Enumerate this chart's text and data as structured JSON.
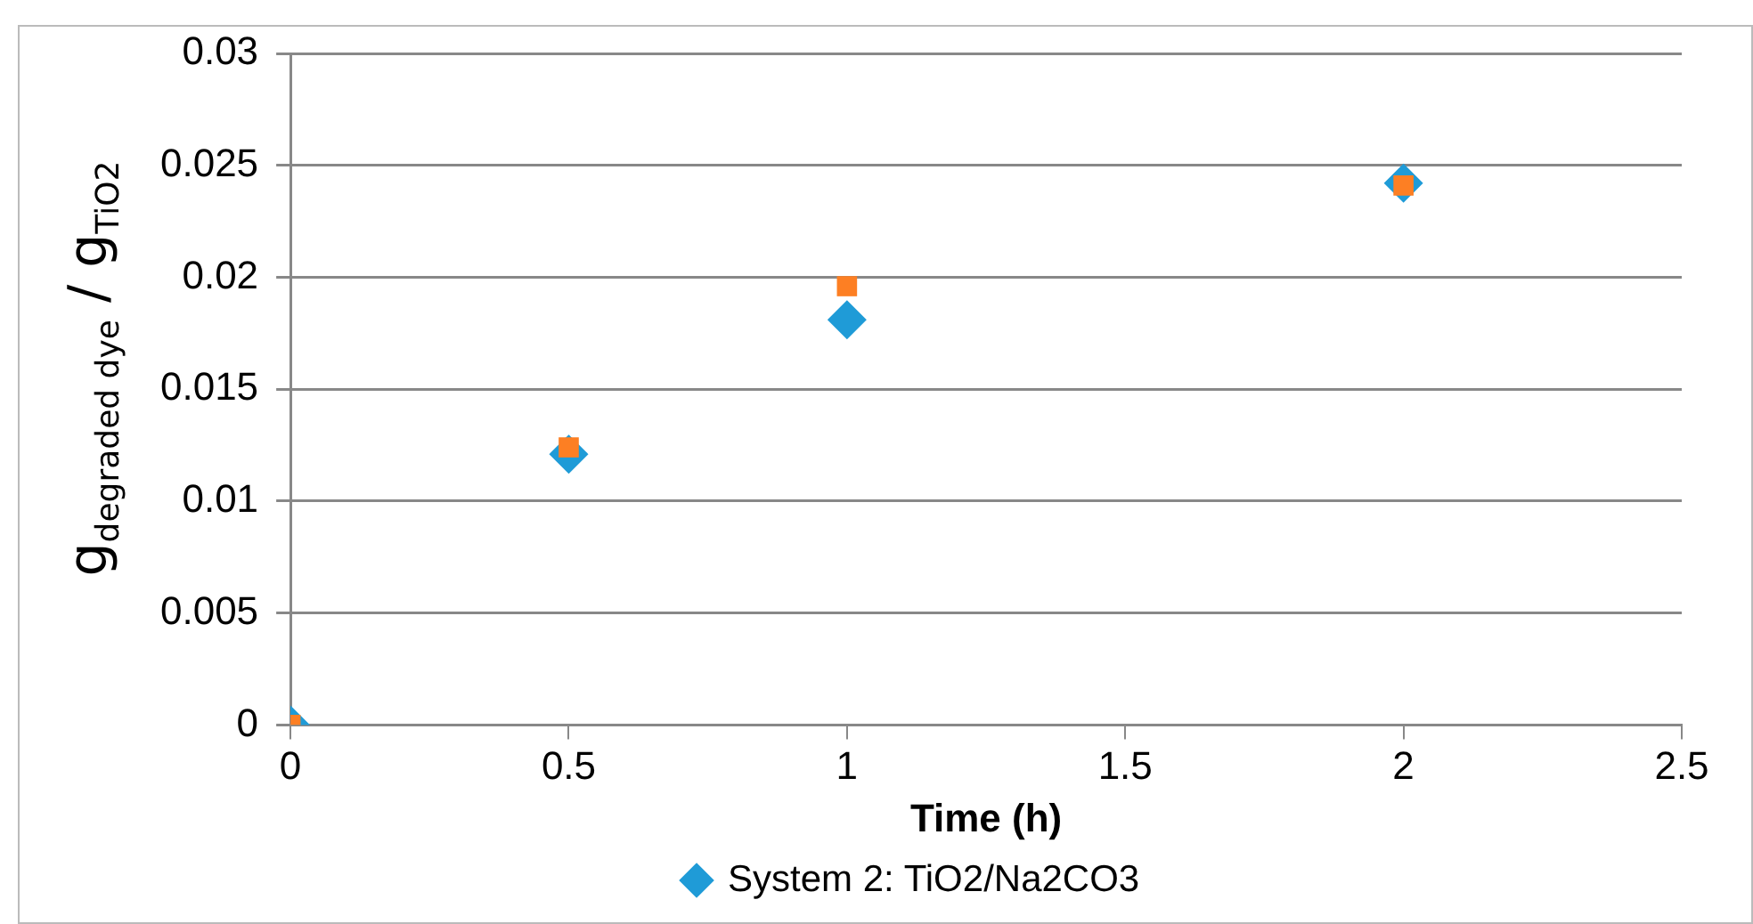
{
  "chart_data": {
    "type": "scatter",
    "xlabel": "Time (h)",
    "ylabel": "g$_{degraded dye}$ / g$_{TiO2}$",
    "x": [
      0,
      0.5,
      1,
      2
    ],
    "series": [
      {
        "name": "System 2: TiO2/Na2CO3",
        "color": "#1f9bd7",
        "marker": "diamond",
        "values": [
          0,
          0.0121,
          0.0181,
          0.0242
        ]
      },
      {
        "color": "#fd7f23",
        "marker": "square",
        "values": [
          0,
          0.0124,
          0.0196,
          0.0241
        ]
      }
    ],
    "xlim": [
      0,
      2.5
    ],
    "xticks": [
      0,
      0.5,
      1,
      1.5,
      2,
      2.5
    ],
    "ylim": [
      0,
      0.03
    ],
    "yticks": [
      0,
      0.005,
      0.01,
      0.015,
      0.02,
      0.025,
      0.03
    ],
    "grid": "y",
    "legend": "bottom"
  }
}
